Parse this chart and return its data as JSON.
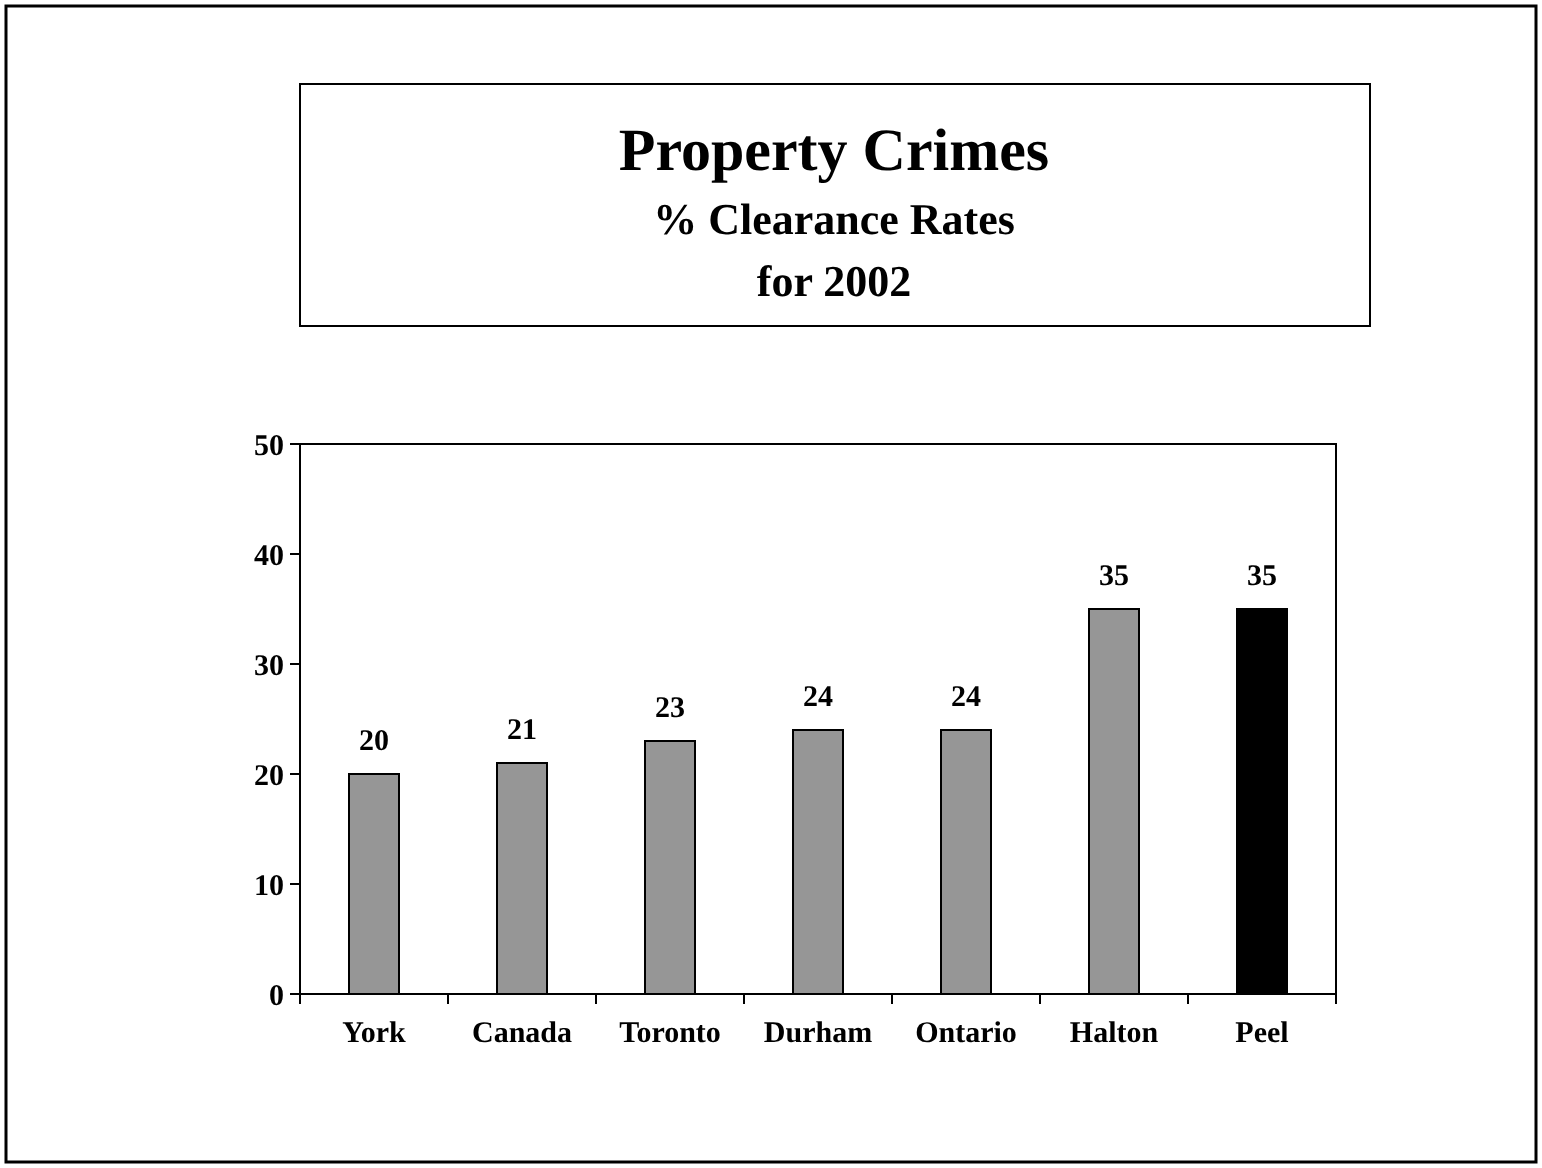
{
  "chart_data": {
    "type": "bar",
    "title": "Property Crimes",
    "subtitle": "% Clearance Rates for 2002",
    "categories": [
      "York",
      "Canada",
      "Toronto",
      "Durham",
      "Ontario",
      "Halton",
      "Peel"
    ],
    "values": [
      20,
      21,
      23,
      24,
      24,
      35,
      35
    ],
    "colors": [
      "#969696",
      "#969696",
      "#969696",
      "#969696",
      "#969696",
      "#969696",
      "#000000"
    ],
    "ylim": [
      0,
      50
    ],
    "yticks": [
      0,
      10,
      20,
      30,
      40,
      50
    ],
    "data_labels": true,
    "grid": false
  }
}
